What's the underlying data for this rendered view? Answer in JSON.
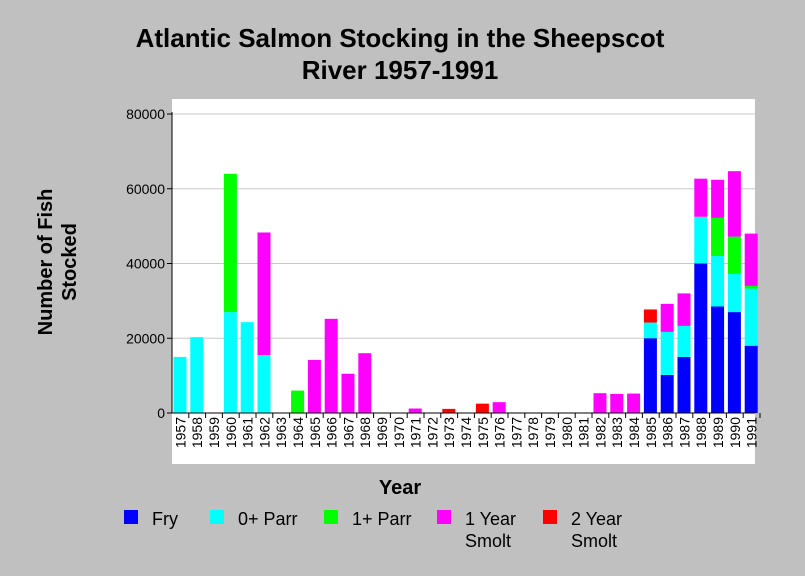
{
  "chart_data": {
    "type": "bar",
    "stacked": true,
    "title": "Atlantic Salmon Stocking in the Sheepscot River 1957-1991",
    "xlabel": "Year",
    "ylabel": "Number of Fish Stocked",
    "ylim": [
      0,
      80000
    ],
    "yticks": [
      0,
      20000,
      40000,
      60000,
      80000
    ],
    "grid": true,
    "legend_position": "bottom",
    "categories": [
      "1957",
      "1958",
      "1959",
      "1960",
      "1961",
      "1962",
      "1963",
      "1964",
      "1965",
      "1966",
      "1967",
      "1968",
      "1969",
      "1970",
      "1971",
      "1972",
      "1973",
      "1974",
      "1975",
      "1976",
      "1977",
      "1978",
      "1979",
      "1980",
      "1981",
      "1982",
      "1983",
      "1984",
      "1985",
      "1986",
      "1987",
      "1988",
      "1989",
      "1990",
      "1991"
    ],
    "series": [
      {
        "name": "Fry",
        "color": "#0000ff",
        "values": [
          0,
          0,
          0,
          0,
          0,
          0,
          0,
          0,
          0,
          0,
          0,
          0,
          0,
          0,
          0,
          0,
          0,
          0,
          0,
          0,
          0,
          0,
          0,
          0,
          0,
          0,
          0,
          0,
          20000,
          10200,
          15000,
          40000,
          28500,
          27000,
          18000
        ]
      },
      {
        "name": "0+ Parr",
        "color": "#00ffff",
        "values": [
          15000,
          20300,
          0,
          27000,
          24300,
          15500,
          0,
          0,
          0,
          0,
          0,
          0,
          0,
          0,
          0,
          0,
          0,
          0,
          0,
          0,
          0,
          0,
          0,
          0,
          0,
          0,
          0,
          0,
          4200,
          11500,
          8300,
          12500,
          13500,
          10200,
          15300
        ]
      },
      {
        "name": "1+ Parr",
        "color": "#00ff00",
        "values": [
          0,
          0,
          0,
          37000,
          0,
          0,
          0,
          6000,
          0,
          0,
          0,
          0,
          0,
          0,
          0,
          0,
          0,
          0,
          0,
          0,
          0,
          0,
          0,
          0,
          0,
          0,
          0,
          0,
          0,
          0,
          0,
          0,
          10200,
          10000,
          700
        ]
      },
      {
        "name": "1 Year Smolt",
        "color": "#ff00ff",
        "values": [
          0,
          0,
          0,
          0,
          0,
          32800,
          0,
          0,
          14200,
          25200,
          10500,
          16000,
          0,
          0,
          1200,
          0,
          0,
          0,
          0,
          2900,
          0,
          0,
          0,
          0,
          0,
          5300,
          5100,
          5200,
          0,
          7500,
          8700,
          10200,
          10200,
          17500,
          14000
        ]
      },
      {
        "name": "2 Year Smolt",
        "color": "#ff0000",
        "values": [
          0,
          0,
          0,
          0,
          0,
          0,
          0,
          0,
          0,
          0,
          0,
          0,
          0,
          0,
          0,
          0,
          1100,
          0,
          2500,
          0,
          0,
          0,
          0,
          0,
          0,
          0,
          0,
          0,
          3500,
          0,
          0,
          0,
          0,
          0,
          0
        ]
      }
    ]
  }
}
